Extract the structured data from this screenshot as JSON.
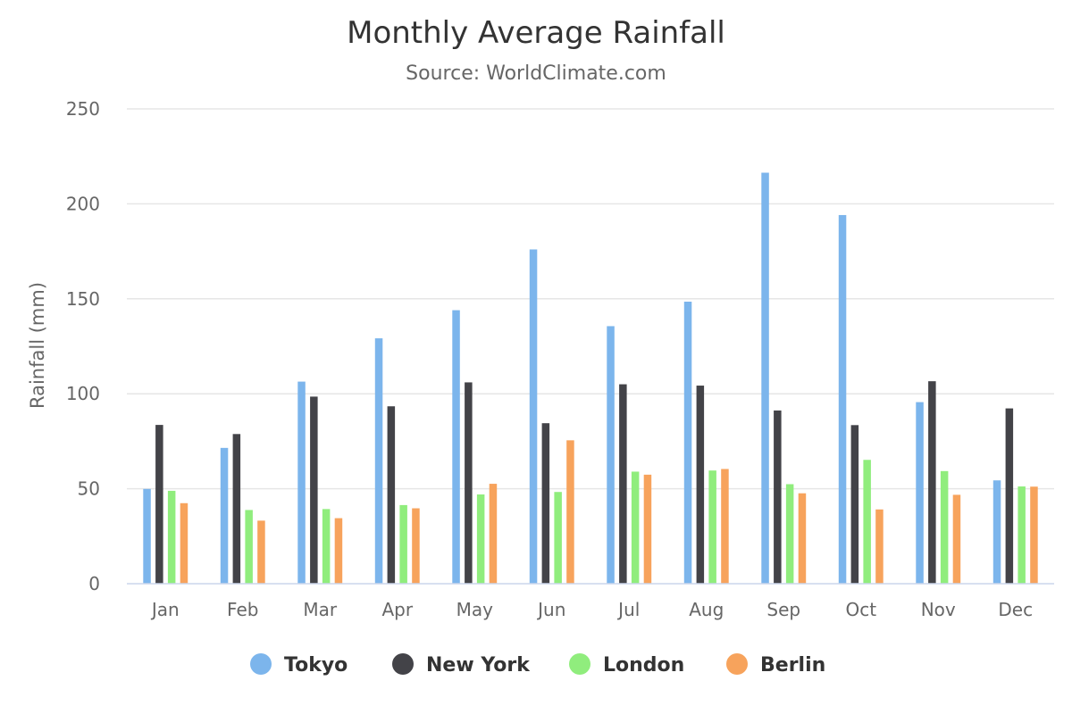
{
  "chart_data": {
    "type": "bar",
    "title": "Monthly Average Rainfall",
    "subtitle": "Source: WorldClimate.com",
    "xlabel": "",
    "ylabel": "Rainfall (mm)",
    "ylim": [
      0,
      250
    ],
    "yticks": [
      0,
      50,
      100,
      150,
      200,
      250
    ],
    "grid": true,
    "legend_position": "bottom",
    "categories": [
      "Jan",
      "Feb",
      "Mar",
      "Apr",
      "May",
      "Jun",
      "Jul",
      "Aug",
      "Sep",
      "Oct",
      "Nov",
      "Dec"
    ],
    "series": [
      {
        "name": "Tokyo",
        "color": "#7cb5ec",
        "values": [
          49.9,
          71.5,
          106.4,
          129.2,
          144.0,
          176.0,
          135.6,
          148.5,
          216.4,
          194.1,
          95.6,
          54.4
        ]
      },
      {
        "name": "New York",
        "color": "#434348",
        "values": [
          83.6,
          78.8,
          98.5,
          93.4,
          106.0,
          84.5,
          105.0,
          104.3,
          91.2,
          83.5,
          106.6,
          92.3
        ]
      },
      {
        "name": "London",
        "color": "#90ed7d",
        "values": [
          48.9,
          38.8,
          39.3,
          41.4,
          47.0,
          48.3,
          59.0,
          59.6,
          52.4,
          65.2,
          59.3,
          51.2
        ]
      },
      {
        "name": "Berlin",
        "color": "#f7a35c",
        "values": [
          42.4,
          33.2,
          34.5,
          39.7,
          52.6,
          75.5,
          57.4,
          60.4,
          47.6,
          39.1,
          46.8,
          51.1
        ]
      }
    ]
  }
}
